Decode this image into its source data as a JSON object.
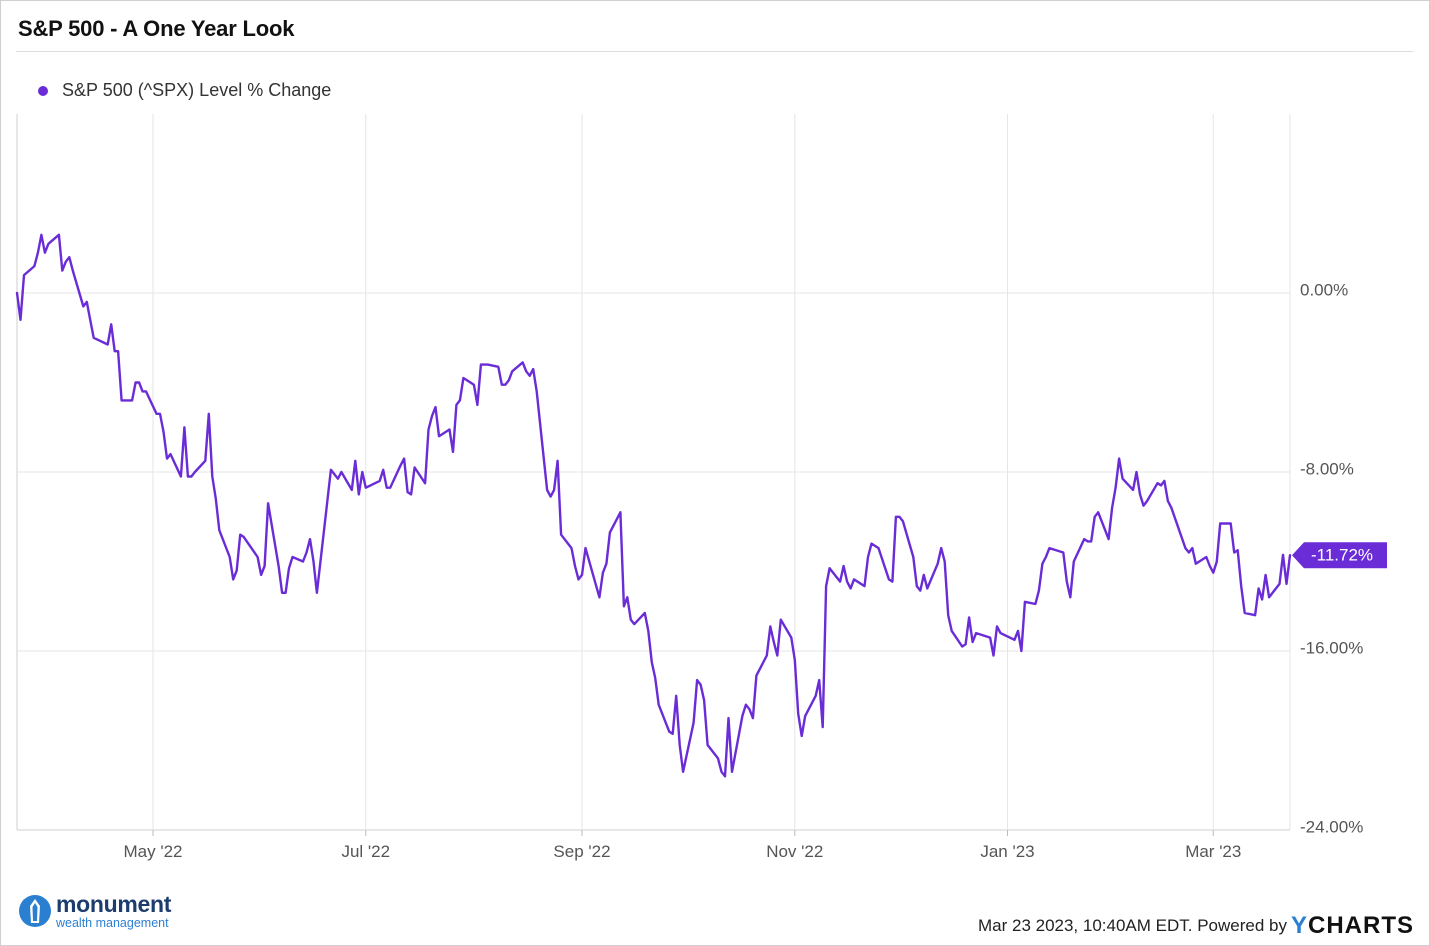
{
  "title": "S&P 500 - A One Year Look",
  "colors": {
    "series": "#6a2cd6",
    "grid": "#e6e6e6",
    "axis_text": "#555555"
  },
  "chart_data": {
    "type": "line",
    "title": "S&P 500 - A One Year Look",
    "legend": {
      "position": "top-left",
      "entries": [
        "S&P 500 (^SPX) Level % Change"
      ]
    },
    "x_ticks": [
      "May '22",
      "Jul '22",
      "Sep '22",
      "Nov '22",
      "Jan '23",
      "Mar '23"
    ],
    "y_ticks": [
      "0.00%",
      "-8.00%",
      "-16.00%",
      "-24.00%"
    ],
    "y_tick_values": [
      0,
      -8,
      -16,
      -24
    ],
    "ylim": [
      -24,
      8
    ],
    "xlim": [
      "2022-03-23",
      "2023-03-23"
    ],
    "x_tick_dates": [
      "2022-05-01",
      "2022-07-01",
      "2022-09-01",
      "2022-11-01",
      "2023-01-01",
      "2023-03-01"
    ],
    "grid": true,
    "last_value_label": "-11.72%",
    "series": [
      {
        "name": "S&P 500 (^SPX) Level % Change",
        "points": [
          [
            "2022-03-23",
            0.0
          ],
          [
            "2022-03-24",
            -1.2
          ],
          [
            "2022-03-25",
            0.8
          ],
          [
            "2022-03-28",
            1.2
          ],
          [
            "2022-03-29",
            1.8
          ],
          [
            "2022-03-30",
            2.6
          ],
          [
            "2022-03-31",
            1.8
          ],
          [
            "2022-04-01",
            2.2
          ],
          [
            "2022-04-04",
            2.6
          ],
          [
            "2022-04-05",
            1.0
          ],
          [
            "2022-04-06",
            1.4
          ],
          [
            "2022-04-07",
            1.6
          ],
          [
            "2022-04-08",
            1.0
          ],
          [
            "2022-04-11",
            -0.6
          ],
          [
            "2022-04-12",
            -0.4
          ],
          [
            "2022-04-13",
            -1.2
          ],
          [
            "2022-04-14",
            -2.0
          ],
          [
            "2022-04-18",
            -2.3
          ],
          [
            "2022-04-19",
            -1.4
          ],
          [
            "2022-04-20",
            -2.6
          ],
          [
            "2022-04-21",
            -2.6
          ],
          [
            "2022-04-22",
            -4.8
          ],
          [
            "2022-04-25",
            -4.8
          ],
          [
            "2022-04-26",
            -4.0
          ],
          [
            "2022-04-27",
            -4.0
          ],
          [
            "2022-04-28",
            -4.4
          ],
          [
            "2022-04-29",
            -4.4
          ],
          [
            "2022-05-02",
            -5.4
          ],
          [
            "2022-05-03",
            -5.4
          ],
          [
            "2022-05-04",
            -6.2
          ],
          [
            "2022-05-05",
            -7.4
          ],
          [
            "2022-05-06",
            -7.2
          ],
          [
            "2022-05-09",
            -8.2
          ],
          [
            "2022-05-10",
            -6.0
          ],
          [
            "2022-05-11",
            -8.2
          ],
          [
            "2022-05-12",
            -8.2
          ],
          [
            "2022-05-13",
            -8.0
          ],
          [
            "2022-05-16",
            -7.5
          ],
          [
            "2022-05-17",
            -5.4
          ],
          [
            "2022-05-18",
            -8.2
          ],
          [
            "2022-05-19",
            -9.2
          ],
          [
            "2022-05-20",
            -10.6
          ],
          [
            "2022-05-23",
            -11.8
          ],
          [
            "2022-05-24",
            -12.8
          ],
          [
            "2022-05-25",
            -12.4
          ],
          [
            "2022-05-26",
            -10.8
          ],
          [
            "2022-05-27",
            -10.9
          ],
          [
            "2022-05-31",
            -11.8
          ],
          [
            "2022-06-01",
            -12.6
          ],
          [
            "2022-06-02",
            -12.2
          ],
          [
            "2022-06-03",
            -9.4
          ],
          [
            "2022-06-06",
            -12.2
          ],
          [
            "2022-06-07",
            -13.4
          ],
          [
            "2022-06-08",
            -13.4
          ],
          [
            "2022-06-09",
            -12.3
          ],
          [
            "2022-06-10",
            -11.8
          ],
          [
            "2022-06-13",
            -12.0
          ],
          [
            "2022-06-14",
            -11.6
          ],
          [
            "2022-06-15",
            -11.0
          ],
          [
            "2022-06-16",
            -12.0
          ],
          [
            "2022-06-17",
            -13.4
          ],
          [
            "2022-06-21",
            -7.9
          ],
          [
            "2022-06-22",
            -8.1
          ],
          [
            "2022-06-23",
            -8.3
          ],
          [
            "2022-06-24",
            -8.0
          ],
          [
            "2022-06-27",
            -8.8
          ],
          [
            "2022-06-28",
            -7.5
          ],
          [
            "2022-06-29",
            -9.0
          ],
          [
            "2022-06-30",
            -8.0
          ],
          [
            "2022-07-01",
            -8.7
          ],
          [
            "2022-07-05",
            -8.4
          ],
          [
            "2022-07-06",
            -7.9
          ],
          [
            "2022-07-07",
            -8.7
          ],
          [
            "2022-07-08",
            -8.7
          ],
          [
            "2022-07-11",
            -7.7
          ],
          [
            "2022-07-12",
            -7.4
          ],
          [
            "2022-07-13",
            -8.9
          ],
          [
            "2022-07-14",
            -9.0
          ],
          [
            "2022-07-15",
            -7.8
          ],
          [
            "2022-07-18",
            -8.5
          ],
          [
            "2022-07-19",
            -6.1
          ],
          [
            "2022-07-20",
            -5.5
          ],
          [
            "2022-07-21",
            -5.1
          ],
          [
            "2022-07-22",
            -6.4
          ],
          [
            "2022-07-25",
            -6.1
          ],
          [
            "2022-07-26",
            -7.1
          ],
          [
            "2022-07-27",
            -5.0
          ],
          [
            "2022-07-28",
            -4.8
          ],
          [
            "2022-07-29",
            -3.8
          ],
          [
            "2022-08-01",
            -4.1
          ],
          [
            "2022-08-02",
            -5.0
          ],
          [
            "2022-08-03",
            -3.2
          ],
          [
            "2022-08-04",
            -3.2
          ],
          [
            "2022-08-05",
            -3.2
          ],
          [
            "2022-08-08",
            -3.3
          ],
          [
            "2022-08-09",
            -4.1
          ],
          [
            "2022-08-10",
            -4.1
          ],
          [
            "2022-08-11",
            -3.9
          ],
          [
            "2022-08-12",
            -3.5
          ],
          [
            "2022-08-15",
            -3.1
          ],
          [
            "2022-08-16",
            -3.5
          ],
          [
            "2022-08-17",
            -3.7
          ],
          [
            "2022-08-18",
            -3.4
          ],
          [
            "2022-08-19",
            -4.4
          ],
          [
            "2022-08-22",
            -8.8
          ],
          [
            "2022-08-23",
            -9.1
          ],
          [
            "2022-08-24",
            -8.8
          ],
          [
            "2022-08-25",
            -7.5
          ],
          [
            "2022-08-26",
            -10.8
          ],
          [
            "2022-08-29",
            -11.4
          ],
          [
            "2022-08-30",
            -12.2
          ],
          [
            "2022-08-31",
            -12.8
          ],
          [
            "2022-09-01",
            -12.6
          ],
          [
            "2022-09-02",
            -11.4
          ],
          [
            "2022-09-06",
            -13.6
          ],
          [
            "2022-09-07",
            -12.5
          ],
          [
            "2022-09-08",
            -12.1
          ],
          [
            "2022-09-09",
            -10.7
          ],
          [
            "2022-09-12",
            -9.8
          ],
          [
            "2022-09-13",
            -14.0
          ],
          [
            "2022-09-14",
            -13.6
          ],
          [
            "2022-09-15",
            -14.6
          ],
          [
            "2022-09-16",
            -14.8
          ],
          [
            "2022-09-19",
            -14.3
          ],
          [
            "2022-09-20",
            -15.1
          ],
          [
            "2022-09-21",
            -16.5
          ],
          [
            "2022-09-22",
            -17.2
          ],
          [
            "2022-09-23",
            -18.4
          ],
          [
            "2022-09-26",
            -19.6
          ],
          [
            "2022-09-27",
            -19.7
          ],
          [
            "2022-09-28",
            -18.0
          ],
          [
            "2022-09-29",
            -20.2
          ],
          [
            "2022-09-30",
            -21.4
          ],
          [
            "2022-10-03",
            -19.2
          ],
          [
            "2022-10-04",
            -17.3
          ],
          [
            "2022-10-05",
            -17.5
          ],
          [
            "2022-10-06",
            -18.2
          ],
          [
            "2022-10-07",
            -20.2
          ],
          [
            "2022-10-10",
            -20.8
          ],
          [
            "2022-10-11",
            -21.4
          ],
          [
            "2022-10-12",
            -21.6
          ],
          [
            "2022-10-13",
            -19.0
          ],
          [
            "2022-10-14",
            -21.4
          ],
          [
            "2022-10-17",
            -18.9
          ],
          [
            "2022-10-18",
            -18.4
          ],
          [
            "2022-10-19",
            -18.6
          ],
          [
            "2022-10-20",
            -19.0
          ],
          [
            "2022-10-21",
            -17.1
          ],
          [
            "2022-10-24",
            -16.2
          ],
          [
            "2022-10-25",
            -14.9
          ],
          [
            "2022-10-26",
            -15.6
          ],
          [
            "2022-10-27",
            -16.2
          ],
          [
            "2022-10-28",
            -14.6
          ],
          [
            "2022-10-31",
            -15.4
          ],
          [
            "2022-11-01",
            -16.4
          ],
          [
            "2022-11-02",
            -18.8
          ],
          [
            "2022-11-03",
            -19.8
          ],
          [
            "2022-11-04",
            -18.9
          ],
          [
            "2022-11-07",
            -18.0
          ],
          [
            "2022-11-08",
            -17.3
          ],
          [
            "2022-11-09",
            -19.4
          ],
          [
            "2022-11-10",
            -13.1
          ],
          [
            "2022-11-11",
            -12.3
          ],
          [
            "2022-11-14",
            -12.9
          ],
          [
            "2022-11-15",
            -12.2
          ],
          [
            "2022-11-16",
            -12.9
          ],
          [
            "2022-11-17",
            -13.2
          ],
          [
            "2022-11-18",
            -12.8
          ],
          [
            "2022-11-21",
            -13.1
          ],
          [
            "2022-11-22",
            -11.8
          ],
          [
            "2022-11-23",
            -11.2
          ],
          [
            "2022-11-25",
            -11.4
          ],
          [
            "2022-11-28",
            -12.8
          ],
          [
            "2022-11-29",
            -12.9
          ],
          [
            "2022-11-30",
            -10.0
          ],
          [
            "2022-12-01",
            -10.0
          ],
          [
            "2022-12-02",
            -10.2
          ],
          [
            "2022-12-05",
            -11.8
          ],
          [
            "2022-12-06",
            -13.1
          ],
          [
            "2022-12-07",
            -13.3
          ],
          [
            "2022-12-08",
            -12.6
          ],
          [
            "2022-12-09",
            -13.2
          ],
          [
            "2022-12-12",
            -12.1
          ],
          [
            "2022-12-13",
            -11.4
          ],
          [
            "2022-12-14",
            -12.0
          ],
          [
            "2022-12-15",
            -14.4
          ],
          [
            "2022-12-16",
            -15.1
          ],
          [
            "2022-12-19",
            -15.8
          ],
          [
            "2022-12-20",
            -15.7
          ],
          [
            "2022-12-21",
            -14.5
          ],
          [
            "2022-12-22",
            -15.6
          ],
          [
            "2022-12-23",
            -15.2
          ],
          [
            "2022-12-27",
            -15.4
          ],
          [
            "2022-12-28",
            -16.2
          ],
          [
            "2022-12-29",
            -14.9
          ],
          [
            "2022-12-30",
            -15.2
          ],
          [
            "2023-01-03",
            -15.5
          ],
          [
            "2023-01-04",
            -15.1
          ],
          [
            "2023-01-05",
            -16.0
          ],
          [
            "2023-01-06",
            -13.8
          ],
          [
            "2023-01-09",
            -13.9
          ],
          [
            "2023-01-10",
            -13.3
          ],
          [
            "2023-01-11",
            -12.1
          ],
          [
            "2023-01-12",
            -11.8
          ],
          [
            "2023-01-13",
            -11.4
          ],
          [
            "2023-01-17",
            -11.6
          ],
          [
            "2023-01-18",
            -12.9
          ],
          [
            "2023-01-19",
            -13.6
          ],
          [
            "2023-01-20",
            -12.0
          ],
          [
            "2023-01-23",
            -11.0
          ],
          [
            "2023-01-24",
            -11.1
          ],
          [
            "2023-01-25",
            -11.1
          ],
          [
            "2023-01-26",
            -10.0
          ],
          [
            "2023-01-27",
            -9.8
          ],
          [
            "2023-01-30",
            -11.0
          ],
          [
            "2023-01-31",
            -9.6
          ],
          [
            "2023-02-01",
            -8.7
          ],
          [
            "2023-02-02",
            -7.4
          ],
          [
            "2023-02-03",
            -8.3
          ],
          [
            "2023-02-06",
            -8.8
          ],
          [
            "2023-02-07",
            -8.0
          ],
          [
            "2023-02-08",
            -9.0
          ],
          [
            "2023-02-09",
            -9.5
          ],
          [
            "2023-02-10",
            -9.3
          ],
          [
            "2023-02-13",
            -8.5
          ],
          [
            "2023-02-14",
            -8.6
          ],
          [
            "2023-02-15",
            -8.4
          ],
          [
            "2023-02-16",
            -9.3
          ],
          [
            "2023-02-17",
            -9.6
          ],
          [
            "2023-02-21",
            -11.4
          ],
          [
            "2023-02-22",
            -11.6
          ],
          [
            "2023-02-23",
            -11.4
          ],
          [
            "2023-02-24",
            -12.1
          ],
          [
            "2023-02-27",
            -11.8
          ],
          [
            "2023-02-28",
            -12.2
          ],
          [
            "2023-03-01",
            -12.5
          ],
          [
            "2023-03-02",
            -12.0
          ],
          [
            "2023-03-03",
            -10.3
          ],
          [
            "2023-03-06",
            -10.3
          ],
          [
            "2023-03-07",
            -11.6
          ],
          [
            "2023-03-08",
            -11.5
          ],
          [
            "2023-03-09",
            -13.1
          ],
          [
            "2023-03-10",
            -14.3
          ],
          [
            "2023-03-13",
            -14.4
          ],
          [
            "2023-03-14",
            -13.2
          ],
          [
            "2023-03-15",
            -13.7
          ],
          [
            "2023-03-16",
            -12.6
          ],
          [
            "2023-03-17",
            -13.6
          ],
          [
            "2023-03-20",
            -13.0
          ],
          [
            "2023-03-21",
            -11.7
          ],
          [
            "2023-03-22",
            -13.0
          ],
          [
            "2023-03-23",
            -11.72
          ]
        ]
      }
    ]
  },
  "brand": {
    "name": "monument",
    "tagline": "wealth management"
  },
  "footer": {
    "timestamp": "Mar 23 2023, 10:40AM EDT. Powered by",
    "provider_y": "Y",
    "provider_rest": "CHARTS"
  }
}
